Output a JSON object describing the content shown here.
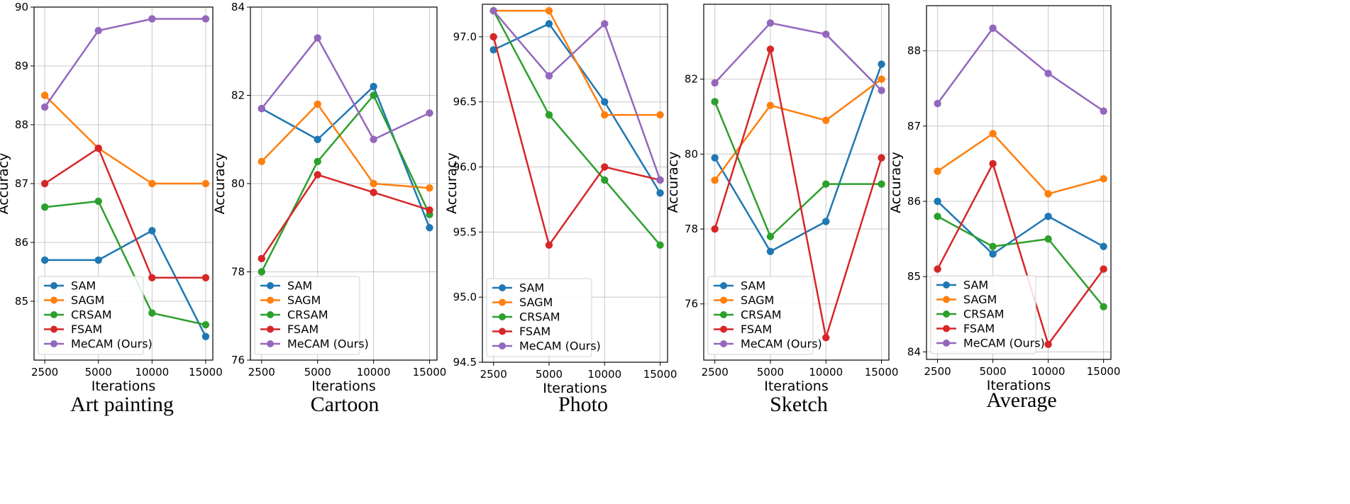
{
  "colors": {
    "SAM": "#1f77b4",
    "SAGM": "#ff7f0e",
    "CRSAM": "#2ca02c",
    "FSAM": "#d62728",
    "MeCAM (Ours)": "#9467bd"
  },
  "chart_data": [
    {
      "type": "line",
      "title": "Art painting",
      "xlabel": "Iterations",
      "ylabel": "Accuracy",
      "categories": [
        "2500",
        "5000",
        "10000",
        "15000"
      ],
      "ylim": [
        84,
        90
      ],
      "yticks": [
        "85",
        "86",
        "87",
        "88",
        "89",
        "90"
      ],
      "grid": true,
      "legend": "lower-left",
      "series": [
        {
          "name": "SAM",
          "values": [
            85.7,
            85.7,
            86.2,
            84.4
          ]
        },
        {
          "name": "SAGM",
          "values": [
            88.5,
            87.6,
            87.0,
            87.0
          ]
        },
        {
          "name": "CRSAM",
          "values": [
            86.6,
            86.7,
            84.8,
            84.6
          ]
        },
        {
          "name": "FSAM",
          "values": [
            87.0,
            87.6,
            85.4,
            85.4
          ]
        },
        {
          "name": "MeCAM (Ours)",
          "values": [
            88.3,
            89.6,
            89.8,
            89.8
          ]
        }
      ]
    },
    {
      "type": "line",
      "title": "Cartoon",
      "xlabel": "Iterations",
      "ylabel": "Accuracy",
      "categories": [
        "2500",
        "5000",
        "10000",
        "15000"
      ],
      "ylim": [
        76,
        84
      ],
      "yticks": [
        "76",
        "78",
        "80",
        "82",
        "84"
      ],
      "grid": true,
      "legend": "lower-left",
      "series": [
        {
          "name": "SAM",
          "values": [
            81.7,
            81.0,
            82.2,
            79.0
          ]
        },
        {
          "name": "SAGM",
          "values": [
            80.5,
            81.8,
            80.0,
            79.9
          ]
        },
        {
          "name": "CRSAM",
          "values": [
            78.0,
            80.5,
            82.0,
            79.3
          ]
        },
        {
          "name": "FSAM",
          "values": [
            78.3,
            80.2,
            79.8,
            79.4
          ]
        },
        {
          "name": "MeCAM (Ours)",
          "values": [
            81.7,
            83.3,
            81.0,
            81.6
          ]
        }
      ]
    },
    {
      "type": "line",
      "title": "Photo",
      "xlabel": "Iterations",
      "ylabel": "Accuracy",
      "categories": [
        "2500",
        "5000",
        "10000",
        "15000"
      ],
      "ylim": [
        94.5,
        97.25
      ],
      "yticks": [
        "94.5",
        "95.0",
        "95.5",
        "96.0",
        "96.5",
        "97.0"
      ],
      "grid": true,
      "legend": "lower-left",
      "series": [
        {
          "name": "SAM",
          "values": [
            96.9,
            97.1,
            96.5,
            95.8
          ]
        },
        {
          "name": "SAGM",
          "values": [
            97.2,
            97.2,
            96.4,
            96.4
          ]
        },
        {
          "name": "CRSAM",
          "values": [
            97.2,
            96.4,
            95.9,
            95.4
          ]
        },
        {
          "name": "FSAM",
          "values": [
            97.0,
            95.4,
            96.0,
            95.9
          ]
        },
        {
          "name": "MeCAM (Ours)",
          "values": [
            97.2,
            96.7,
            97.1,
            95.9
          ]
        }
      ]
    },
    {
      "type": "line",
      "title": "Sketch",
      "xlabel": "Iterations",
      "ylabel": "Accuracy",
      "categories": [
        "2500",
        "5000",
        "10000",
        "15000"
      ],
      "ylim": [
        74.5,
        84
      ],
      "yticks": [
        "76",
        "78",
        "80",
        "82"
      ],
      "grid": true,
      "legend": "lower-left",
      "series": [
        {
          "name": "SAM",
          "values": [
            79.9,
            77.4,
            78.2,
            82.4
          ]
        },
        {
          "name": "SAGM",
          "values": [
            79.3,
            81.3,
            80.9,
            82.0
          ]
        },
        {
          "name": "CRSAM",
          "values": [
            81.4,
            77.8,
            79.2,
            79.2
          ]
        },
        {
          "name": "FSAM",
          "values": [
            78.0,
            82.8,
            75.1,
            79.9
          ]
        },
        {
          "name": "MeCAM (Ours)",
          "values": [
            81.9,
            83.5,
            83.2,
            81.7
          ]
        }
      ]
    },
    {
      "type": "line",
      "title": "Average",
      "xlabel": "Iterations",
      "ylabel": "Accuracy",
      "categories": [
        "2500",
        "5000",
        "10000",
        "15000"
      ],
      "ylim": [
        83.9,
        88.6
      ],
      "yticks": [
        "84",
        "85",
        "86",
        "87",
        "88"
      ],
      "grid": true,
      "legend": "lower-left",
      "series": [
        {
          "name": "SAM",
          "values": [
            86.0,
            85.3,
            85.8,
            85.4
          ]
        },
        {
          "name": "SAGM",
          "values": [
            86.4,
            86.9,
            86.1,
            86.3
          ]
        },
        {
          "name": "CRSAM",
          "values": [
            85.8,
            85.4,
            85.5,
            84.6
          ]
        },
        {
          "name": "FSAM",
          "values": [
            85.1,
            86.5,
            84.1,
            85.1
          ]
        },
        {
          "name": "MeCAM (Ours)",
          "values": [
            87.3,
            88.3,
            87.7,
            87.2
          ]
        }
      ]
    }
  ]
}
